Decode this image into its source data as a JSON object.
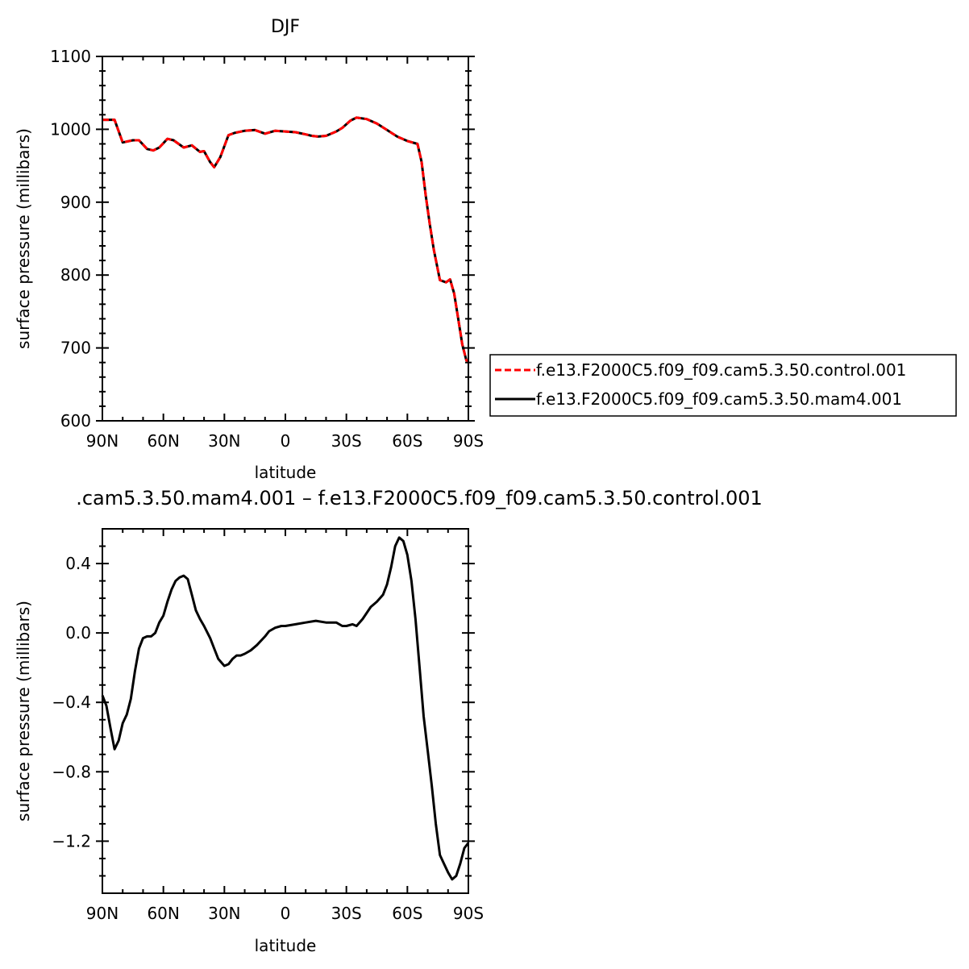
{
  "chart_data": [
    {
      "type": "line",
      "title": "DJF",
      "xlabel": "latitude",
      "ylabel": "surface pressure (millibars)",
      "xlim": [
        90,
        -90
      ],
      "ylim": [
        600,
        1100
      ],
      "x_ticks": [
        90,
        60,
        30,
        0,
        -30,
        -60,
        -90
      ],
      "x_tick_labels": [
        "90N",
        "60N",
        "30N",
        "0",
        "30S",
        "60S",
        "90S"
      ],
      "y_ticks": [
        600,
        700,
        800,
        900,
        1000,
        1100
      ],
      "y_tick_labels": [
        "600",
        "700",
        "800",
        "900",
        "1000",
        "1100"
      ],
      "legend_position": "right",
      "x": [
        90,
        84,
        80,
        75,
        72,
        68,
        65,
        62,
        58,
        55,
        50,
        46,
        42,
        40,
        37,
        35,
        32,
        28,
        25,
        20,
        15,
        10,
        5,
        0,
        -5,
        -10,
        -13,
        -16,
        -20,
        -25,
        -28,
        -32,
        -35,
        -40,
        -45,
        -50,
        -55,
        -60,
        -65,
        -67,
        -69,
        -71,
        -73,
        -76,
        -79,
        -81,
        -83,
        -85,
        -87,
        -89,
        -90
      ],
      "series": [
        {
          "name": "f.e13.F2000C5.f09_f09.cam5.3.50.control.001",
          "color": "#ff0000",
          "dash": "dashed",
          "values": [
            1013,
            1013,
            982,
            985,
            985,
            973,
            971,
            975,
            987,
            985,
            975,
            978,
            969,
            970,
            955,
            948,
            962,
            992,
            995,
            998,
            999,
            994,
            998,
            997,
            996,
            993,
            991,
            990,
            991,
            997,
            1002,
            1012,
            1016,
            1014,
            1008,
            999,
            990,
            984,
            980,
            955,
            910,
            870,
            835,
            793,
            790,
            794,
            775,
            740,
            705,
            683,
            682
          ]
        },
        {
          "name": "f.e13.F2000C5.f09_f09.cam5.3.50.mam4.001",
          "color": "#000000",
          "dash": "solid",
          "values": [
            1013,
            1013,
            982,
            985,
            985,
            973,
            971,
            975,
            987,
            985,
            975,
            978,
            969,
            970,
            955,
            948,
            962,
            992,
            995,
            998,
            999,
            994,
            998,
            997,
            996,
            993,
            991,
            990,
            991,
            997,
            1002,
            1012,
            1016,
            1014,
            1008,
            999,
            990,
            984,
            980,
            955,
            910,
            870,
            835,
            793,
            790,
            794,
            775,
            740,
            705,
            683,
            682
          ]
        }
      ]
    },
    {
      "type": "line",
      "title": ".cam5.3.50.mam4.001  –  f.e13.F2000C5.f09_f09.cam5.3.50.control.001",
      "xlabel": "latitude",
      "ylabel": "surface pressure (millibars)",
      "xlim": [
        90,
        -90
      ],
      "ylim": [
        -1.5,
        0.6
      ],
      "x_ticks": [
        90,
        60,
        30,
        0,
        -30,
        -60,
        -90
      ],
      "x_tick_labels": [
        "90N",
        "60N",
        "30N",
        "0",
        "30S",
        "60S",
        "90S"
      ],
      "y_ticks": [
        -1.2,
        -0.8,
        -0.4,
        0.0,
        0.4
      ],
      "y_tick_labels": [
        "−1.2",
        "−0.8",
        "−0.4",
        "0.0",
        "0.4"
      ],
      "x": [
        90,
        88,
        86,
        84,
        82,
        80,
        78,
        76,
        74,
        72,
        70,
        68,
        66,
        64,
        62,
        60,
        58,
        56,
        54,
        52,
        50,
        48,
        46,
        44,
        42,
        40,
        37,
        35,
        33,
        30,
        28,
        26,
        24,
        22,
        20,
        17,
        14,
        10,
        8,
        5,
        2,
        0,
        -5,
        -10,
        -15,
        -20,
        -25,
        -28,
        -30,
        -33,
        -35,
        -38,
        -42,
        -45,
        -48,
        -50,
        -52,
        -54,
        -56,
        -58,
        -60,
        -62,
        -64,
        -66,
        -68,
        -70,
        -72,
        -74,
        -76,
        -78,
        -80,
        -82,
        -84,
        -86,
        -88,
        -90
      ],
      "series": [
        {
          "name": "",
          "color": "#000000",
          "dash": "solid",
          "values": [
            -0.36,
            -0.42,
            -0.55,
            -0.67,
            -0.62,
            -0.52,
            -0.47,
            -0.38,
            -0.22,
            -0.09,
            -0.03,
            -0.02,
            -0.02,
            0.0,
            0.06,
            0.1,
            0.18,
            0.25,
            0.3,
            0.32,
            0.33,
            0.31,
            0.22,
            0.13,
            0.08,
            0.04,
            -0.03,
            -0.09,
            -0.15,
            -0.19,
            -0.18,
            -0.15,
            -0.13,
            -0.13,
            -0.12,
            -0.1,
            -0.07,
            -0.02,
            0.01,
            0.03,
            0.04,
            0.04,
            0.05,
            0.06,
            0.07,
            0.06,
            0.06,
            0.04,
            0.04,
            0.05,
            0.04,
            0.08,
            0.15,
            0.18,
            0.22,
            0.28,
            0.38,
            0.5,
            0.55,
            0.53,
            0.45,
            0.3,
            0.08,
            -0.2,
            -0.48,
            -0.68,
            -0.88,
            -1.1,
            -1.28,
            -1.33,
            -1.38,
            -1.42,
            -1.4,
            -1.33,
            -1.24,
            -1.21
          ]
        }
      ]
    }
  ]
}
